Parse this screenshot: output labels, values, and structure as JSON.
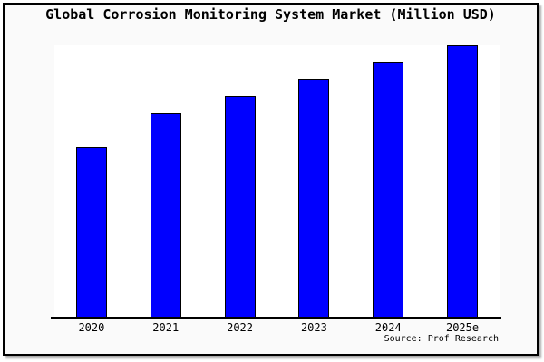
{
  "chart_data": {
    "type": "bar",
    "title": "Global Corrosion Monitoring System Market (Million USD)",
    "categories": [
      "2020",
      "2021",
      "2022",
      "2023",
      "2024",
      "2025e"
    ],
    "values": [
      62.8,
      75.1,
      81.4,
      87.7,
      93.7,
      100
    ],
    "value_note": "No numeric y-axis is shown in the chart; values are relative bar heights estimated from pixels, normalized so 2025e = 100",
    "xlabel": "",
    "ylabel": "",
    "ylim": [
      0,
      100
    ],
    "grid": false,
    "legend": false,
    "source": "Source: Prof Research"
  },
  "colors": {
    "bar_fill": "#0000ff",
    "bar_border": "#000000",
    "card_background": "#fafafa",
    "plot_background": "#ffffff",
    "axis": "#000000",
    "page_background": "#ffffff"
  }
}
